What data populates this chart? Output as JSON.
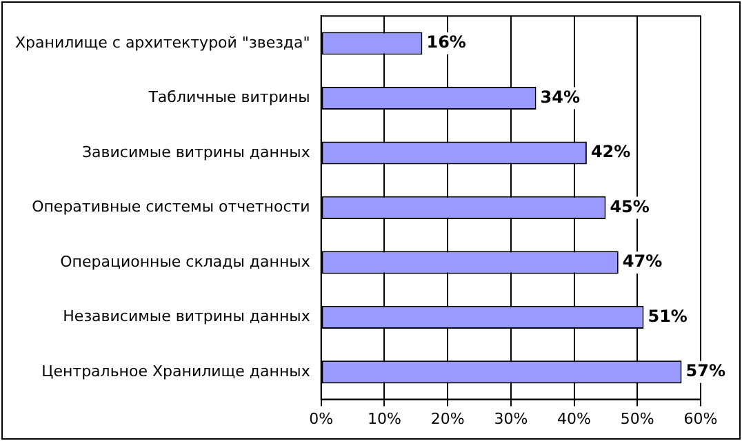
{
  "chart_data": {
    "type": "bar",
    "orientation": "horizontal",
    "categories": [
      "Хранилище с архитектурой \"звезда\"",
      "Табличные витрины",
      "Зависимые витрины данных",
      "Оперативные системы отчетности",
      "Операционные склады данных",
      "Независимые витрины данных",
      "Центральное Хранилище данных"
    ],
    "values": [
      16,
      34,
      42,
      45,
      47,
      51,
      57
    ],
    "value_labels": [
      "16%",
      "34%",
      "42%",
      "45%",
      "47%",
      "51%",
      "57%"
    ],
    "color": "#9999ff",
    "xlim": [
      0,
      60
    ],
    "xticks": [
      {
        "value": 0,
        "label": "0%"
      },
      {
        "value": 10,
        "label": "10%"
      },
      {
        "value": 20,
        "label": "20%"
      },
      {
        "value": 30,
        "label": "30%"
      },
      {
        "value": 40,
        "label": "40%"
      },
      {
        "value": 50,
        "label": "50%"
      },
      {
        "value": 60,
        "label": "60%"
      }
    ],
    "grid": "x",
    "legend": false
  }
}
